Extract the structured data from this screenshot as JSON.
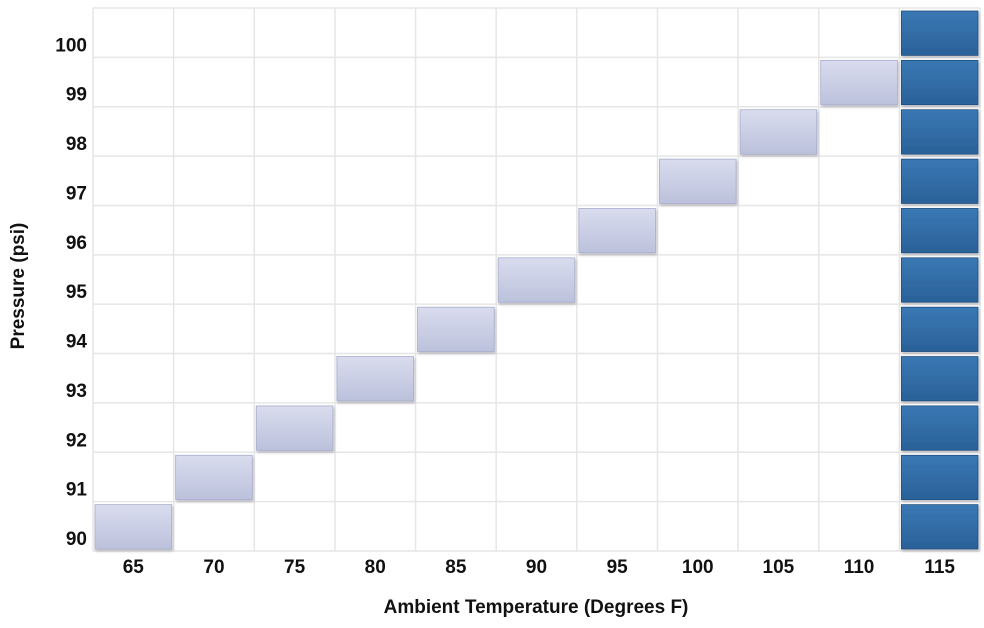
{
  "chart_data": {
    "type": "heatmap",
    "title": "",
    "xlabel": "Ambient Temperature (Degrees F)",
    "ylabel": "Pressure (psi)",
    "x_categories": [
      "65",
      "70",
      "75",
      "80",
      "85",
      "90",
      "95",
      "100",
      "105",
      "110",
      "115"
    ],
    "y_categories": [
      "90",
      "91",
      "92",
      "93",
      "94",
      "95",
      "96",
      "97",
      "98",
      "99",
      "100"
    ],
    "points": [
      {
        "x": "65",
        "y": "90"
      },
      {
        "x": "70",
        "y": "91"
      },
      {
        "x": "75",
        "y": "92"
      },
      {
        "x": "80",
        "y": "93"
      },
      {
        "x": "85",
        "y": "94"
      },
      {
        "x": "90",
        "y": "95"
      },
      {
        "x": "95",
        "y": "96"
      },
      {
        "x": "100",
        "y": "97"
      },
      {
        "x": "105",
        "y": "98"
      },
      {
        "x": "110",
        "y": "99"
      }
    ],
    "highlight_column": "115",
    "grid": true,
    "colors": {
      "cell_fill": "#c8cce3",
      "highlight_fill": "#2f6aa3",
      "grid_line": "#e6e6e6"
    }
  }
}
